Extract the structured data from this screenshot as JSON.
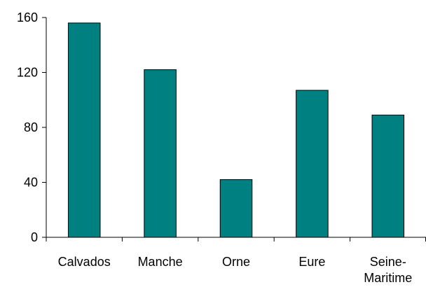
{
  "chart_data": {
    "type": "bar",
    "title": "",
    "xlabel": "",
    "ylabel": "",
    "categories": [
      "Calvados",
      "Manche",
      "Orne",
      "Eure",
      "Seine-Maritime"
    ],
    "category_label_lines": [
      [
        "Calvados"
      ],
      [
        "Manche"
      ],
      [
        "Orne"
      ],
      [
        "Eure"
      ],
      [
        "Seine-",
        "Maritime"
      ]
    ],
    "values": [
      156,
      122,
      42,
      107,
      89
    ],
    "ylim": [
      0,
      160
    ],
    "yticks": [
      0,
      40,
      80,
      120,
      160
    ],
    "bar_color": "#008080",
    "grid": false,
    "legend": "none"
  }
}
